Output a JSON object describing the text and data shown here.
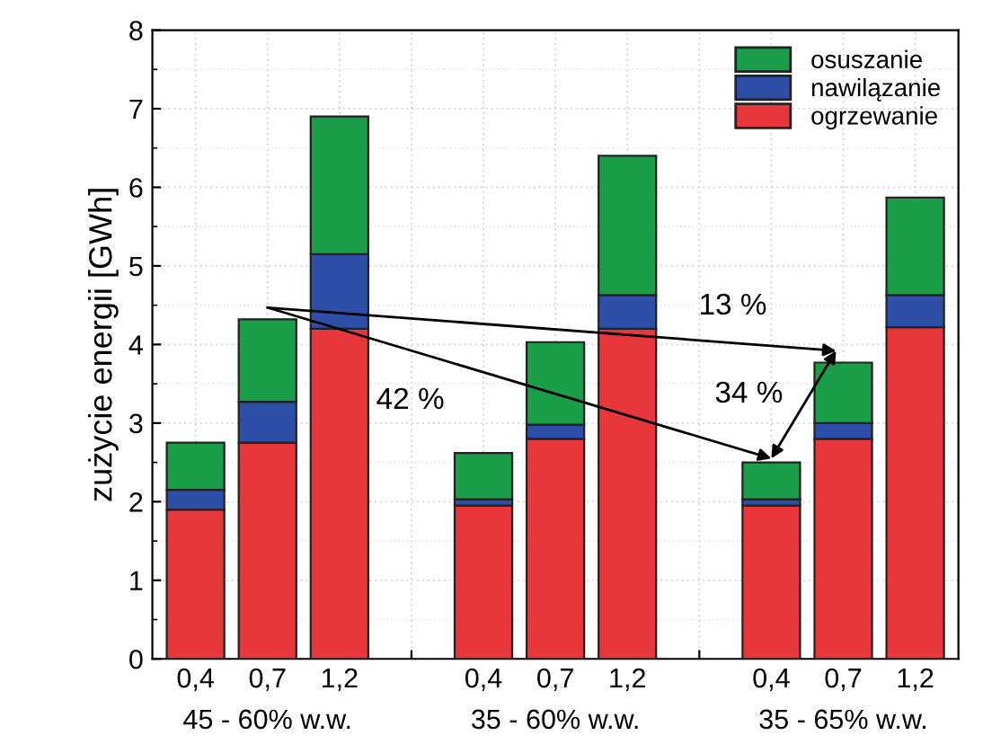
{
  "chart_data": {
    "type": "bar",
    "stacked": true,
    "ylabel": "zużycie energii [GWh]",
    "categories": [
      "0,4",
      "0,7",
      "1,2",
      null,
      "0,4",
      "0,7",
      "1,2",
      null,
      "0,4",
      "0,7",
      "1,2"
    ],
    "series": [
      {
        "name": "ogrzewanie",
        "color": "#e8373a",
        "values": [
          1.9,
          2.75,
          4.2,
          null,
          1.95,
          2.8,
          4.2,
          null,
          1.95,
          2.8,
          4.22
        ]
      },
      {
        "name": "nawilązanie",
        "color": "#2e4fa8",
        "values": [
          0.25,
          0.52,
          0.95,
          null,
          0.08,
          0.18,
          0.43,
          null,
          0.08,
          0.2,
          0.41
        ]
      },
      {
        "name": "osuszanie",
        "color": "#1a9e4a",
        "values": [
          0.6,
          1.05,
          1.75,
          null,
          0.59,
          1.05,
          1.77,
          null,
          0.47,
          0.77,
          1.24
        ]
      }
    ],
    "ylim": [
      0,
      8
    ],
    "yticks": [
      0,
      1,
      2,
      3,
      4,
      5,
      6,
      7,
      8
    ],
    "grid": true,
    "legend": "top right",
    "annotations": [
      "45 - 60% w.w.",
      "35 - 60% w.w.",
      "35 - 65% w.w.",
      "13 %",
      "42 %",
      "34 %"
    ]
  }
}
